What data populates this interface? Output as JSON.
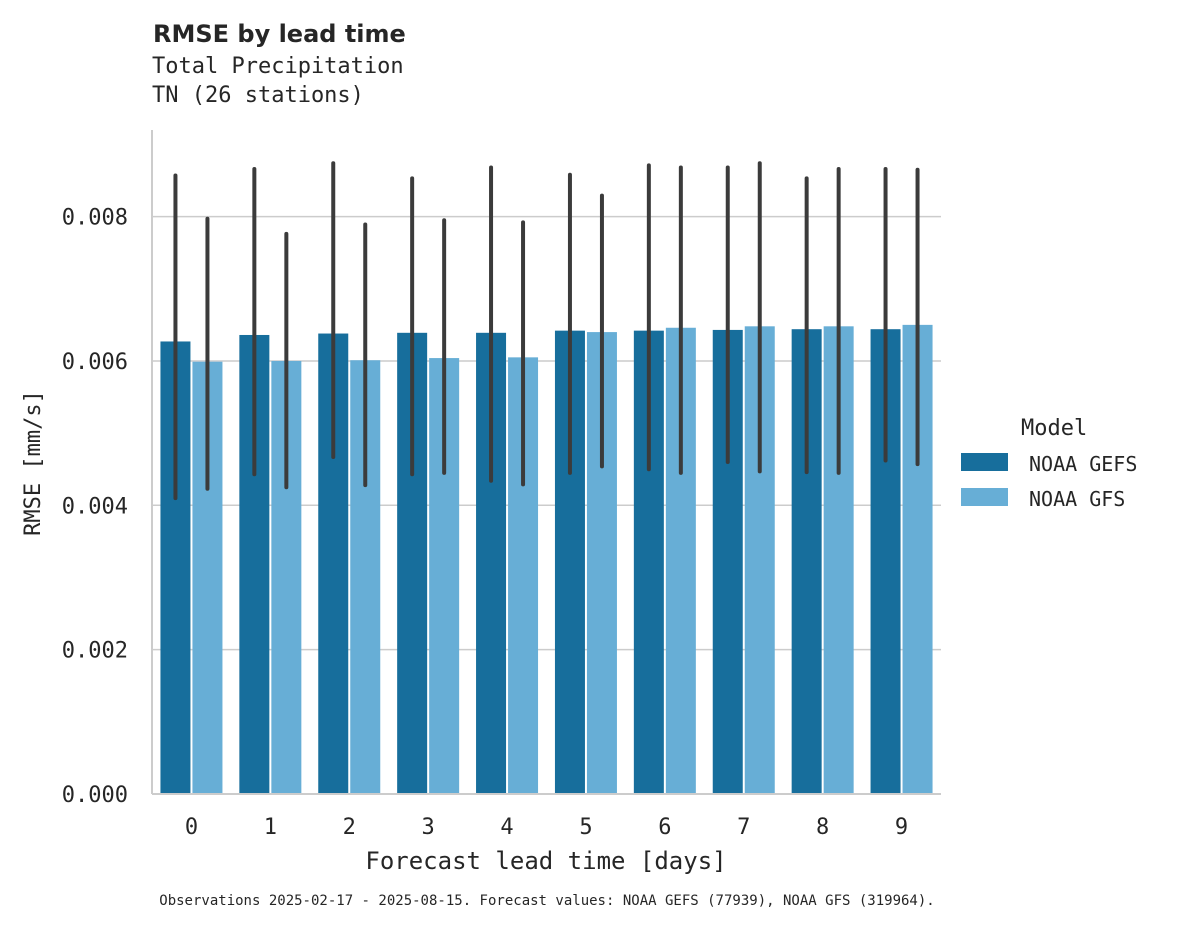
{
  "chart_data": {
    "type": "bar",
    "title": "RMSE by lead time",
    "subtitle_lines": [
      "Total Precipitation",
      "TN (26 stations)"
    ],
    "xlabel": "Forecast lead time [days]",
    "ylabel": "RMSE [mm/s]",
    "categories": [
      "0",
      "1",
      "2",
      "3",
      "4",
      "5",
      "6",
      "7",
      "8",
      "9"
    ],
    "ylim": [
      0,
      0.0092
    ],
    "yticks": [
      "0.000",
      "0.002",
      "0.004",
      "0.006",
      "0.008"
    ],
    "ytick_values": [
      0,
      0.002,
      0.004,
      0.006,
      0.008
    ],
    "grid": "horizontal",
    "legend": {
      "title": "Model",
      "placement": "right",
      "entries": [
        "NOAA GEFS",
        "NOAA GFS"
      ]
    },
    "series": [
      {
        "name": "NOAA GEFS",
        "color": "#176e9c",
        "values": [
          0.00627,
          0.00636,
          0.00638,
          0.00639,
          0.00639,
          0.00642,
          0.00642,
          0.00643,
          0.00644,
          0.00644
        ],
        "ci_low": [
          0.0041,
          0.00443,
          0.00467,
          0.00443,
          0.00434,
          0.00445,
          0.0045,
          0.0046,
          0.00446,
          0.00462
        ],
        "ci_high": [
          0.00857,
          0.00866,
          0.00874,
          0.00853,
          0.00868,
          0.00858,
          0.00871,
          0.00868,
          0.00853,
          0.00866
        ]
      },
      {
        "name": "NOAA GFS",
        "color": "#67aed6",
        "values": [
          0.00599,
          0.006,
          0.00601,
          0.00604,
          0.00605,
          0.0064,
          0.00646,
          0.00648,
          0.00648,
          0.0065
        ],
        "ci_low": [
          0.00423,
          0.00425,
          0.00428,
          0.00445,
          0.00429,
          0.00454,
          0.00445,
          0.00447,
          0.00445,
          0.00457
        ],
        "ci_high": [
          0.00797,
          0.00776,
          0.00789,
          0.00795,
          0.00792,
          0.00829,
          0.00868,
          0.00874,
          0.00866,
          0.00865
        ]
      }
    ],
    "footnote": "Observations 2025-02-17 - 2025-08-15. Forecast values: NOAA GEFS (77939), NOAA GFS (319964)."
  }
}
